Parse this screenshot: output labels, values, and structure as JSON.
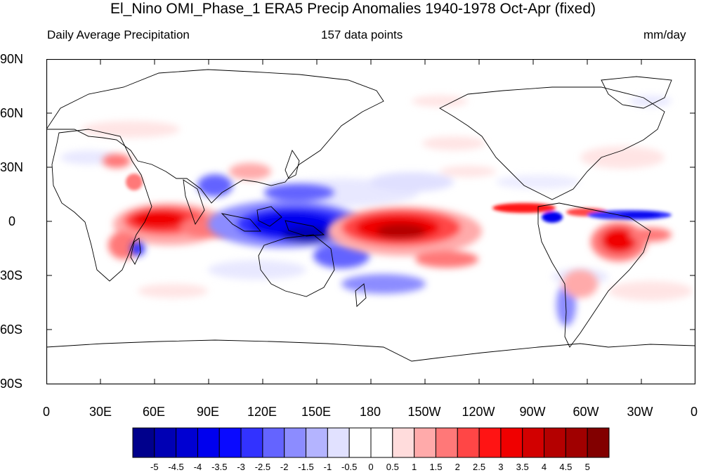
{
  "title": "El_Nino OMI_Phase_1 ERA5 Precip Anomalies 1940-1978 Oct-Apr (fixed)",
  "subtitle_left": "Daily Average Precipitation",
  "subtitle_center": "157 data points",
  "subtitle_right": "mm/day",
  "lat_labels": [
    "90N",
    "60N",
    "30N",
    "0",
    "30S",
    "60S",
    "90S"
  ],
  "lon_labels": [
    "0",
    "30E",
    "60E",
    "90E",
    "120E",
    "150E",
    "180",
    "150W",
    "120W",
    "90W",
    "60W",
    "30W",
    "0"
  ],
  "colorbar": {
    "labels": [
      "-5",
      "-4.5",
      "-4",
      "-3.5",
      "-3",
      "-2.5",
      "-2",
      "-1.5",
      "-1",
      "-0.5",
      "0",
      "0.5",
      "1",
      "1.5",
      "2",
      "2.5",
      "3",
      "3.5",
      "4",
      "4.5",
      "5"
    ],
    "colors": [
      "#00008c",
      "#0000b4",
      "#0000d2",
      "#0000ee",
      "#0a0aff",
      "#3232ff",
      "#6464ff",
      "#8c8cff",
      "#b4b4ff",
      "#e1e1ff",
      "#ffffff",
      "#ffffff",
      "#ffdcdc",
      "#ffaaaa",
      "#ff7878",
      "#ff4646",
      "#ff1414",
      "#f00000",
      "#d20000",
      "#b40000",
      "#a00000",
      "#820000"
    ]
  },
  "map": {
    "projection": "cylindrical-equidistant",
    "lon_range": [
      0,
      360
    ],
    "lat_range": [
      -90,
      90
    ]
  }
}
